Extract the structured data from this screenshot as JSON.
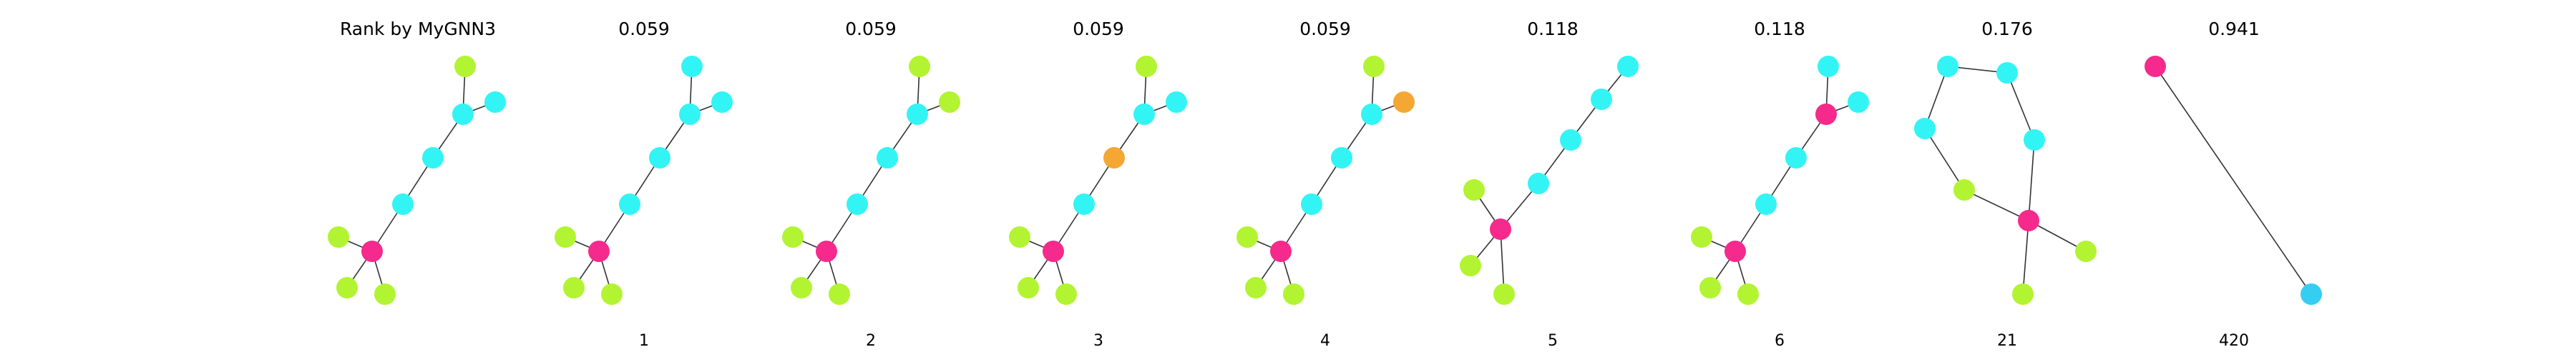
{
  "title": "Rank by MyGNN3",
  "colors": {
    "cyan": "#33f4f4",
    "magenta": "#f52a8c",
    "lime": "#b2f431",
    "orange": "#f5a733",
    "blue": "#36cdf2",
    "edge": "#333333"
  },
  "panels": [
    {
      "score": "",
      "rank": "",
      "graph": {
        "nodes": [
          "lime",
          "cyan",
          "cyan",
          "cyan",
          "cyan",
          "magenta",
          "lime",
          "lime",
          "lime"
        ],
        "edges": [
          [
            0,
            1
          ],
          [
            1,
            2
          ],
          [
            1,
            3
          ],
          [
            3,
            4
          ],
          [
            4,
            5
          ],
          [
            5,
            6
          ],
          [
            5,
            7
          ],
          [
            5,
            8
          ]
        ]
      }
    },
    {
      "score": "0.059",
      "rank": "1",
      "graph": {
        "nodes": [
          "cyan",
          "cyan",
          "cyan",
          "cyan",
          "cyan",
          "magenta",
          "lime",
          "lime",
          "lime"
        ],
        "edges": [
          [
            0,
            1
          ],
          [
            1,
            2
          ],
          [
            1,
            3
          ],
          [
            3,
            4
          ],
          [
            4,
            5
          ],
          [
            5,
            6
          ],
          [
            5,
            7
          ],
          [
            5,
            8
          ]
        ]
      }
    },
    {
      "score": "0.059",
      "rank": "2",
      "graph": {
        "nodes": [
          "lime",
          "cyan",
          "lime",
          "cyan",
          "cyan",
          "magenta",
          "lime",
          "lime",
          "lime"
        ],
        "edges": [
          [
            0,
            1
          ],
          [
            1,
            2
          ],
          [
            1,
            3
          ],
          [
            3,
            4
          ],
          [
            4,
            5
          ],
          [
            5,
            6
          ],
          [
            5,
            7
          ],
          [
            5,
            8
          ]
        ]
      }
    },
    {
      "score": "0.059",
      "rank": "3",
      "graph": {
        "nodes": [
          "lime",
          "cyan",
          "cyan",
          "orange",
          "cyan",
          "magenta",
          "lime",
          "lime",
          "lime"
        ],
        "edges": [
          [
            0,
            1
          ],
          [
            1,
            2
          ],
          [
            1,
            3
          ],
          [
            3,
            4
          ],
          [
            4,
            5
          ],
          [
            5,
            6
          ],
          [
            5,
            7
          ],
          [
            5,
            8
          ]
        ]
      }
    },
    {
      "score": "0.059",
      "rank": "4",
      "graph": {
        "nodes": [
          "lime",
          "cyan",
          "orange",
          "cyan",
          "cyan",
          "magenta",
          "lime",
          "lime",
          "lime"
        ],
        "edges": [
          [
            0,
            1
          ],
          [
            1,
            2
          ],
          [
            1,
            3
          ],
          [
            3,
            4
          ],
          [
            4,
            5
          ],
          [
            5,
            6
          ],
          [
            5,
            7
          ],
          [
            5,
            8
          ]
        ]
      }
    },
    {
      "score": "0.118",
      "rank": "5",
      "graph": {
        "nodes": [
          "cyan",
          "cyan",
          "cyan",
          "cyan",
          "magenta",
          "lime",
          "lime",
          "lime"
        ],
        "edges": [
          [
            0,
            1
          ],
          [
            1,
            2
          ],
          [
            2,
            3
          ],
          [
            3,
            4
          ],
          [
            4,
            5
          ],
          [
            4,
            6
          ],
          [
            4,
            7
          ]
        ]
      }
    },
    {
      "score": "0.118",
      "rank": "6",
      "graph": {
        "nodes": [
          "cyan",
          "magenta",
          "cyan",
          "cyan",
          "cyan",
          "magenta",
          "lime",
          "lime",
          "lime"
        ],
        "edges": [
          [
            0,
            1
          ],
          [
            1,
            2
          ],
          [
            1,
            3
          ],
          [
            3,
            4
          ],
          [
            4,
            5
          ],
          [
            5,
            6
          ],
          [
            5,
            7
          ],
          [
            5,
            8
          ]
        ]
      }
    },
    {
      "score": "0.176",
      "rank": "21",
      "graph": {
        "nodes": [
          "cyan",
          "cyan",
          "cyan",
          "cyan",
          "lime",
          "magenta",
          "lime",
          "lime"
        ],
        "edges": [
          [
            0,
            1
          ],
          [
            0,
            2
          ],
          [
            2,
            4
          ],
          [
            4,
            5
          ],
          [
            1,
            3
          ],
          [
            3,
            5
          ],
          [
            5,
            6
          ],
          [
            5,
            7
          ]
        ]
      }
    },
    {
      "score": "0.941",
      "rank": "420",
      "graph": {
        "nodes": [
          "magenta",
          "blue"
        ],
        "edges": [
          [
            0,
            1
          ]
        ]
      }
    }
  ]
}
